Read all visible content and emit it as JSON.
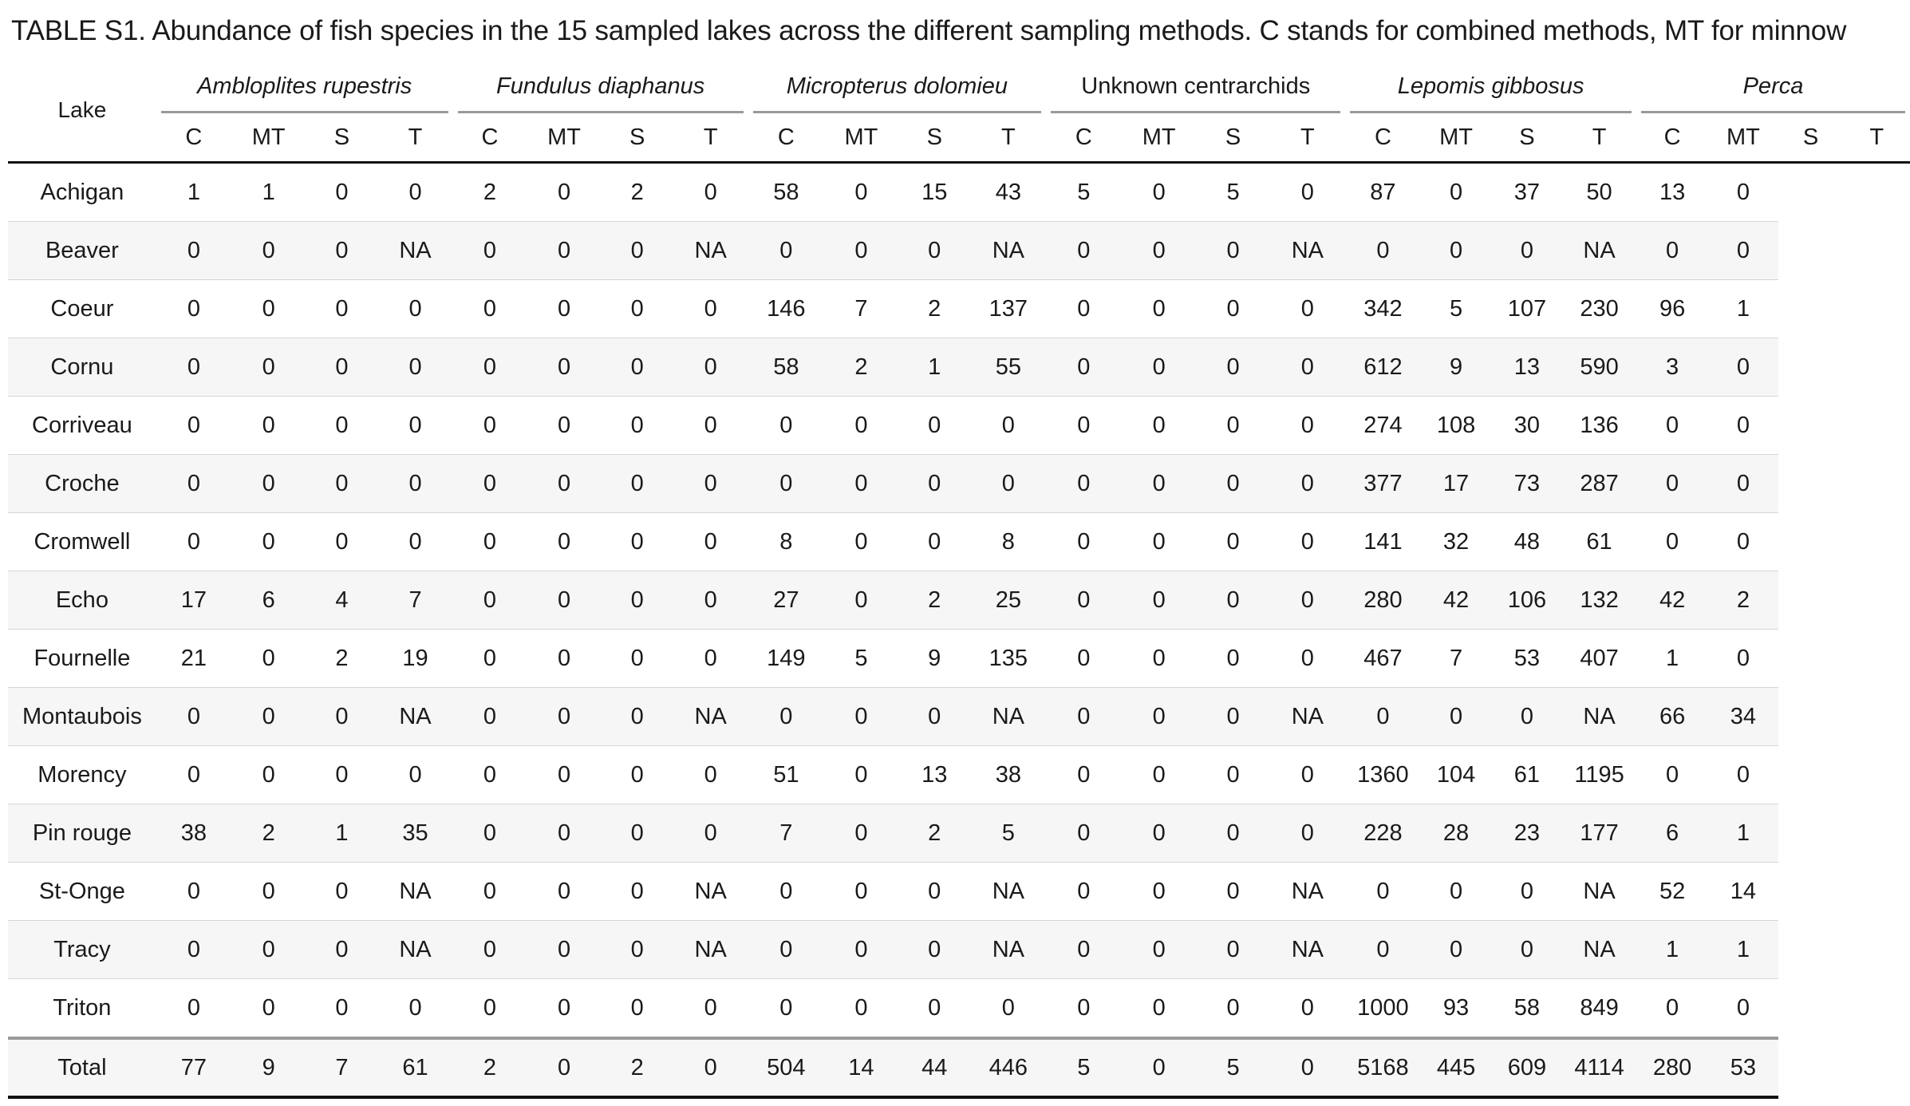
{
  "caption": {
    "label": "TABLE S1.",
    "text_1": " Abundance of fish species in the 15 sampled lakes across the different sampling methods. ",
    "c_bold": "C",
    "text_2": " stands for combined methods, ",
    "mt_bold": "MT",
    "text_3": " for minnow"
  },
  "table": {
    "lake_header": "Lake",
    "species": [
      {
        "name": "Ambloplites rupestris",
        "italic": true
      },
      {
        "name": "Fundulus diaphanus",
        "italic": true
      },
      {
        "name": "Micropterus dolomieu",
        "italic": true
      },
      {
        "name": "Unknown centrarchids",
        "italic": false
      },
      {
        "name": "Lepomis gibbosus",
        "italic": true
      },
      {
        "name": "Perca",
        "italic": true
      }
    ],
    "method_headers": [
      "C",
      "MT",
      "S",
      "T"
    ],
    "rows": [
      {
        "lake": "Achigan",
        "values": [
          "1",
          "1",
          "0",
          "0",
          "2",
          "0",
          "2",
          "0",
          "58",
          "0",
          "15",
          "43",
          "5",
          "0",
          "5",
          "0",
          "87",
          "0",
          "37",
          "50",
          "13",
          "0"
        ]
      },
      {
        "lake": "Beaver",
        "values": [
          "0",
          "0",
          "0",
          "NA",
          "0",
          "0",
          "0",
          "NA",
          "0",
          "0",
          "0",
          "NA",
          "0",
          "0",
          "0",
          "NA",
          "0",
          "0",
          "0",
          "NA",
          "0",
          "0"
        ]
      },
      {
        "lake": "Coeur",
        "values": [
          "0",
          "0",
          "0",
          "0",
          "0",
          "0",
          "0",
          "0",
          "146",
          "7",
          "2",
          "137",
          "0",
          "0",
          "0",
          "0",
          "342",
          "5",
          "107",
          "230",
          "96",
          "1"
        ]
      },
      {
        "lake": "Cornu",
        "values": [
          "0",
          "0",
          "0",
          "0",
          "0",
          "0",
          "0",
          "0",
          "58",
          "2",
          "1",
          "55",
          "0",
          "0",
          "0",
          "0",
          "612",
          "9",
          "13",
          "590",
          "3",
          "0"
        ]
      },
      {
        "lake": "Corriveau",
        "values": [
          "0",
          "0",
          "0",
          "0",
          "0",
          "0",
          "0",
          "0",
          "0",
          "0",
          "0",
          "0",
          "0",
          "0",
          "0",
          "0",
          "274",
          "108",
          "30",
          "136",
          "0",
          "0"
        ]
      },
      {
        "lake": "Croche",
        "values": [
          "0",
          "0",
          "0",
          "0",
          "0",
          "0",
          "0",
          "0",
          "0",
          "0",
          "0",
          "0",
          "0",
          "0",
          "0",
          "0",
          "377",
          "17",
          "73",
          "287",
          "0",
          "0"
        ]
      },
      {
        "lake": "Cromwell",
        "values": [
          "0",
          "0",
          "0",
          "0",
          "0",
          "0",
          "0",
          "0",
          "8",
          "0",
          "0",
          "8",
          "0",
          "0",
          "0",
          "0",
          "141",
          "32",
          "48",
          "61",
          "0",
          "0"
        ]
      },
      {
        "lake": "Echo",
        "values": [
          "17",
          "6",
          "4",
          "7",
          "0",
          "0",
          "0",
          "0",
          "27",
          "0",
          "2",
          "25",
          "0",
          "0",
          "0",
          "0",
          "280",
          "42",
          "106",
          "132",
          "42",
          "2"
        ]
      },
      {
        "lake": "Fournelle",
        "values": [
          "21",
          "0",
          "2",
          "19",
          "0",
          "0",
          "0",
          "0",
          "149",
          "5",
          "9",
          "135",
          "0",
          "0",
          "0",
          "0",
          "467",
          "7",
          "53",
          "407",
          "1",
          "0"
        ]
      },
      {
        "lake": "Montaubois",
        "values": [
          "0",
          "0",
          "0",
          "NA",
          "0",
          "0",
          "0",
          "NA",
          "0",
          "0",
          "0",
          "NA",
          "0",
          "0",
          "0",
          "NA",
          "0",
          "0",
          "0",
          "NA",
          "66",
          "34"
        ]
      },
      {
        "lake": "Morency",
        "values": [
          "0",
          "0",
          "0",
          "0",
          "0",
          "0",
          "0",
          "0",
          "51",
          "0",
          "13",
          "38",
          "0",
          "0",
          "0",
          "0",
          "1360",
          "104",
          "61",
          "1195",
          "0",
          "0"
        ]
      },
      {
        "lake": "Pin rouge",
        "values": [
          "38",
          "2",
          "1",
          "35",
          "0",
          "0",
          "0",
          "0",
          "7",
          "0",
          "2",
          "5",
          "0",
          "0",
          "0",
          "0",
          "228",
          "28",
          "23",
          "177",
          "6",
          "1"
        ]
      },
      {
        "lake": "St-Onge",
        "values": [
          "0",
          "0",
          "0",
          "NA",
          "0",
          "0",
          "0",
          "NA",
          "0",
          "0",
          "0",
          "NA",
          "0",
          "0",
          "0",
          "NA",
          "0",
          "0",
          "0",
          "NA",
          "52",
          "14"
        ]
      },
      {
        "lake": "Tracy",
        "values": [
          "0",
          "0",
          "0",
          "NA",
          "0",
          "0",
          "0",
          "NA",
          "0",
          "0",
          "0",
          "NA",
          "0",
          "0",
          "0",
          "NA",
          "0",
          "0",
          "0",
          "NA",
          "1",
          "1"
        ]
      },
      {
        "lake": "Triton",
        "values": [
          "0",
          "0",
          "0",
          "0",
          "0",
          "0",
          "0",
          "0",
          "0",
          "0",
          "0",
          "0",
          "0",
          "0",
          "0",
          "0",
          "1000",
          "93",
          "58",
          "849",
          "0",
          "0"
        ]
      }
    ],
    "total": {
      "lake": "Total",
      "values": [
        "77",
        "9",
        "7",
        "61",
        "2",
        "0",
        "2",
        "0",
        "504",
        "14",
        "44",
        "446",
        "5",
        "0",
        "5",
        "0",
        "5168",
        "445",
        "609",
        "4114",
        "280",
        "53"
      ]
    }
  }
}
